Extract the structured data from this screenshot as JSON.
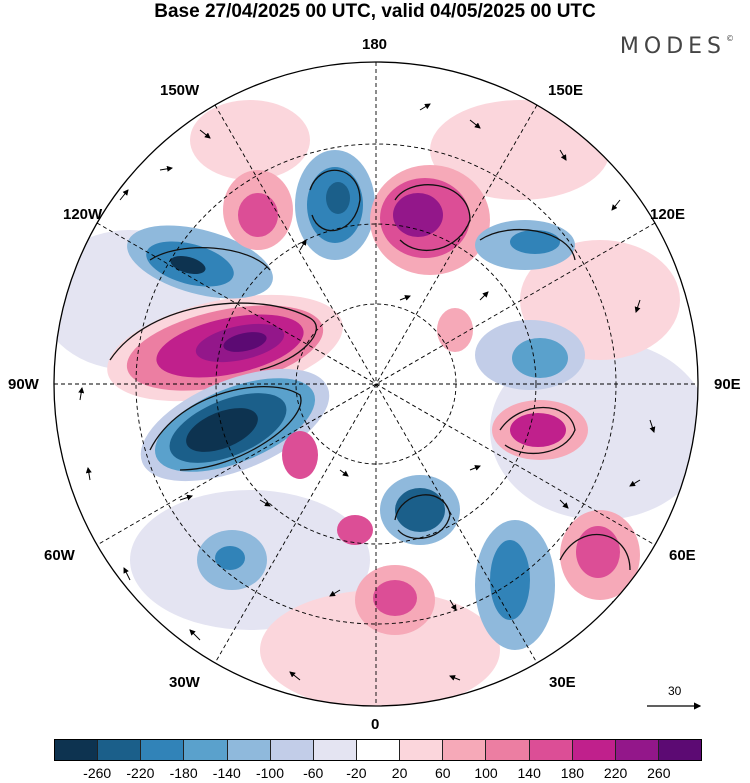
{
  "title": "Base 27/04/2025 00 UTC, valid 04/05/2025 00 UTC",
  "brand": "MODES",
  "brand_mark": "©",
  "longitude_labels": {
    "n180": "180",
    "w150": "150W",
    "e150": "150E",
    "w120": "120W",
    "e120": "120E",
    "w90": "90W",
    "e90": "90E",
    "w60": "60W",
    "e60": "60E",
    "w30": "30W",
    "e30": "30E",
    "s0": "0"
  },
  "vector_reference": "30",
  "colorbar": {
    "colors": [
      "#0d3350",
      "#1b5f8a",
      "#3183b8",
      "#5aa1cc",
      "#8fb9dc",
      "#c2cde8",
      "#e4e4f2",
      "#ffffff",
      "#fbd6dc",
      "#f6a9b8",
      "#ec7ea2",
      "#dc4e96",
      "#c0208c",
      "#93178a",
      "#5c0a73"
    ],
    "ticks": [
      "-260",
      "-220",
      "-180",
      "-140",
      "-100",
      "-60",
      "-20",
      "20",
      "60",
      "100",
      "140",
      "180",
      "220",
      "260"
    ]
  },
  "anomaly_centers": [
    {
      "type": "positive",
      "level": 220,
      "color": "#9c1d88"
    },
    {
      "type": "negative",
      "level": -260,
      "color": "#0d3350"
    }
  ]
}
